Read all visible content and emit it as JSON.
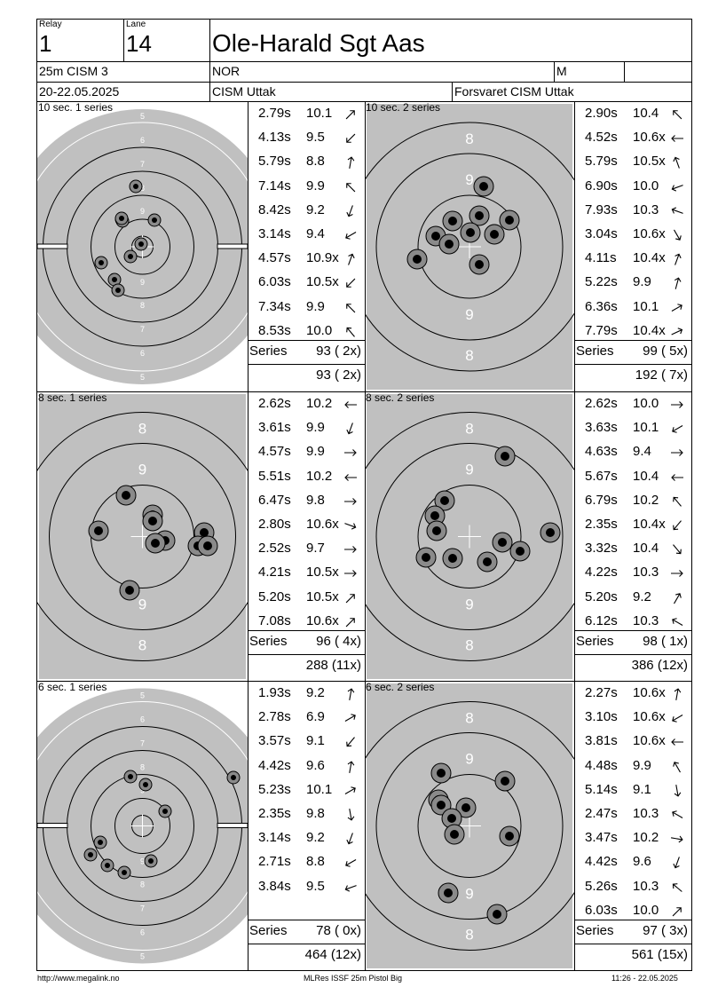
{
  "header": {
    "relay_label": "Relay",
    "relay": "1",
    "lane_label": "Lane",
    "lane": "14",
    "shooter": "Ole-Harald Sgt Aas",
    "event": "25m CISM 3",
    "nation": "NOR",
    "gender": "M",
    "date": "20-22.05.2025",
    "competition": "CISM Uttak",
    "organizer": "Forsvaret CISM Uttak"
  },
  "series": [
    {
      "title": "10 sec. 1 series",
      "shots": [
        {
          "time": "2.79s",
          "score": "10.1",
          "dir": 45
        },
        {
          "time": "4.13s",
          "score": "9.5",
          "dir": 225
        },
        {
          "time": "5.79s",
          "score": "8.8",
          "dir": 10
        },
        {
          "time": "7.14s",
          "score": "9.9",
          "dir": -45
        },
        {
          "time": "8.42s",
          "score": "9.2",
          "dir": 200
        },
        {
          "time": "3.14s",
          "score": "9.4",
          "dir": 240
        },
        {
          "time": "4.57s",
          "score": "10.9x",
          "dir": 20
        },
        {
          "time": "6.03s",
          "score": "10.5x",
          "dir": 225
        },
        {
          "time": "7.34s",
          "score": "9.9",
          "dir": -45
        },
        {
          "time": "8.53s",
          "score": "10.0",
          "dir": -40
        }
      ],
      "series_label": "Series",
      "series_total": "93 ( 2x)",
      "running_total": "93 ( 2x)"
    },
    {
      "title": "10 sec. 2 series",
      "shots": [
        {
          "time": "2.90s",
          "score": "10.4",
          "dir": -45
        },
        {
          "time": "4.52s",
          "score": "10.6x",
          "dir": 270
        },
        {
          "time": "5.79s",
          "score": "10.5x",
          "dir": -20
        },
        {
          "time": "6.90s",
          "score": "10.0",
          "dir": 250
        },
        {
          "time": "7.93s",
          "score": "10.3",
          "dir": 290
        },
        {
          "time": "3.04s",
          "score": "10.6x",
          "dir": 150
        },
        {
          "time": "4.11s",
          "score": "10.4x",
          "dir": 20
        },
        {
          "time": "5.22s",
          "score": "9.9",
          "dir": 15
        },
        {
          "time": "6.36s",
          "score": "10.1",
          "dir": 60
        },
        {
          "time": "7.79s",
          "score": "10.4x",
          "dir": 65
        }
      ],
      "series_label": "Series",
      "series_total": "99 ( 5x)",
      "running_total": "192 ( 7x)"
    },
    {
      "title": "8 sec. 1 series",
      "shots": [
        {
          "time": "2.62s",
          "score": "10.2",
          "dir": 270
        },
        {
          "time": "3.61s",
          "score": "9.9",
          "dir": 200
        },
        {
          "time": "4.57s",
          "score": "9.9",
          "dir": 90
        },
        {
          "time": "5.51s",
          "score": "10.2",
          "dir": 270
        },
        {
          "time": "6.47s",
          "score": "9.8",
          "dir": 90
        },
        {
          "time": "2.80s",
          "score": "10.6x",
          "dir": 110
        },
        {
          "time": "2.52s",
          "score": "9.7",
          "dir": 90
        },
        {
          "time": "4.21s",
          "score": "10.5x",
          "dir": 90
        },
        {
          "time": "5.20s",
          "score": "10.5x",
          "dir": 45
        },
        {
          "time": "7.08s",
          "score": "10.6x",
          "dir": 45
        }
      ],
      "series_label": "Series",
      "series_total": "96 ( 4x)",
      "running_total": "288 (11x)"
    },
    {
      "title": "8 sec. 2 series",
      "shots": [
        {
          "time": "2.62s",
          "score": "10.0",
          "dir": 90
        },
        {
          "time": "3.63s",
          "score": "10.1",
          "dir": 240
        },
        {
          "time": "4.63s",
          "score": "9.4",
          "dir": 90
        },
        {
          "time": "5.67s",
          "score": "10.4",
          "dir": 270
        },
        {
          "time": "6.79s",
          "score": "10.2",
          "dir": -40
        },
        {
          "time": "2.35s",
          "score": "10.4x",
          "dir": 220
        },
        {
          "time": "3.32s",
          "score": "10.4",
          "dir": 140
        },
        {
          "time": "4.22s",
          "score": "10.3",
          "dir": 90
        },
        {
          "time": "5.20s",
          "score": "9.2",
          "dir": 30
        },
        {
          "time": "6.12s",
          "score": "10.3",
          "dir": -60
        }
      ],
      "series_label": "Series",
      "series_total": "98 ( 1x)",
      "running_total": "386 (12x)"
    },
    {
      "title": "6 sec. 1 series",
      "shots": [
        {
          "time": "1.93s",
          "score": "9.2",
          "dir": 10
        },
        {
          "time": "2.78s",
          "score": "6.9",
          "dir": 60
        },
        {
          "time": "3.57s",
          "score": "9.1",
          "dir": 220
        },
        {
          "time": "4.42s",
          "score": "9.6",
          "dir": 10
        },
        {
          "time": "5.23s",
          "score": "10.1",
          "dir": 60
        },
        {
          "time": "2.35s",
          "score": "9.8",
          "dir": 170
        },
        {
          "time": "3.14s",
          "score": "9.2",
          "dir": 200
        },
        {
          "time": "2.71s",
          "score": "8.8",
          "dir": 240
        },
        {
          "time": "3.84s",
          "score": "9.5",
          "dir": 250
        }
      ],
      "series_label": "Series",
      "series_total": "78 ( 0x)",
      "running_total": "464 (12x)"
    },
    {
      "title": "6 sec. 2 series",
      "shots": [
        {
          "time": "2.27s",
          "score": "10.6x",
          "dir": 10
        },
        {
          "time": "3.10s",
          "score": "10.6x",
          "dir": 240
        },
        {
          "time": "3.81s",
          "score": "10.6x",
          "dir": 270
        },
        {
          "time": "4.48s",
          "score": "9.9",
          "dir": -30
        },
        {
          "time": "5.14s",
          "score": "9.1",
          "dir": 170
        },
        {
          "time": "2.47s",
          "score": "10.3",
          "dir": -60
        },
        {
          "time": "3.47s",
          "score": "10.2",
          "dir": 100
        },
        {
          "time": "4.42s",
          "score": "9.6",
          "dir": 200
        },
        {
          "time": "5.26s",
          "score": "10.3",
          "dir": -50
        },
        {
          "time": "6.03s",
          "score": "10.0",
          "dir": 45
        }
      ],
      "series_label": "Series",
      "series_total": "97 ( 3x)",
      "running_total": "561 (15x)"
    }
  ],
  "targets": [
    {
      "type": "precision",
      "ring_labels": [
        "5",
        "6",
        "7",
        "8",
        "9",
        "9",
        "8",
        "7",
        "6",
        "5"
      ]
    },
    {
      "type": "rapid",
      "ring_labels": [
        "8",
        "9",
        "9",
        "8"
      ]
    },
    {
      "type": "rapid",
      "ring_labels": [
        "8",
        "9",
        "9",
        "8"
      ]
    },
    {
      "type": "rapid",
      "ring_labels": [
        "8",
        "9",
        "9",
        "8"
      ]
    },
    {
      "type": "precision",
      "ring_labels": [
        "5",
        "6",
        "7",
        "8",
        "9",
        "9",
        "8",
        "7",
        "6",
        "5"
      ]
    },
    {
      "type": "rapid",
      "ring_labels": [
        "8",
        "9",
        "9",
        "8"
      ]
    }
  ],
  "footer": {
    "url": "http://www.megalink.no",
    "program": "MLRes ISSF 25m Pistol Big",
    "timestamp": "11:26 - 22.05.2025"
  },
  "colors": {
    "target_gray": "#c0c0c0",
    "hole_gray": "#8a8a8a"
  }
}
